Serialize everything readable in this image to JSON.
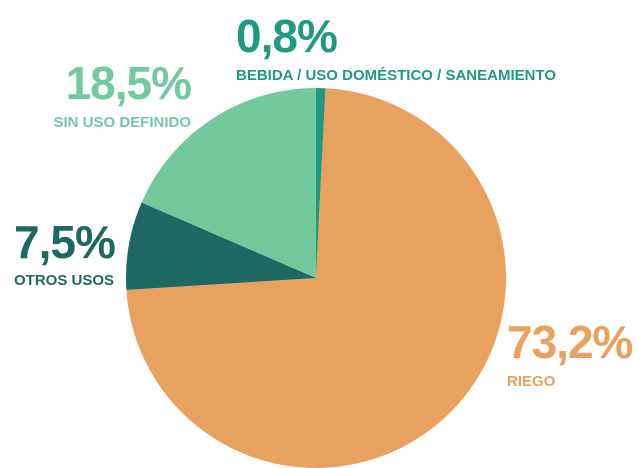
{
  "chart_data": {
    "type": "pie",
    "categories": [
      "BEBIDA / USO DOMÉSTICO / SANEAMIENTO",
      "RIEGO",
      "OTROS USOS",
      "SIN USO DEFINIDO"
    ],
    "values": [
      0.8,
      73.2,
      7.5,
      18.5
    ],
    "value_labels": [
      "0,8%",
      "73,2%",
      "7,5%",
      "18,5%"
    ],
    "colors": [
      "#1f9a80",
      "#e9a15f",
      "#1d6962",
      "#72c99e"
    ]
  }
}
